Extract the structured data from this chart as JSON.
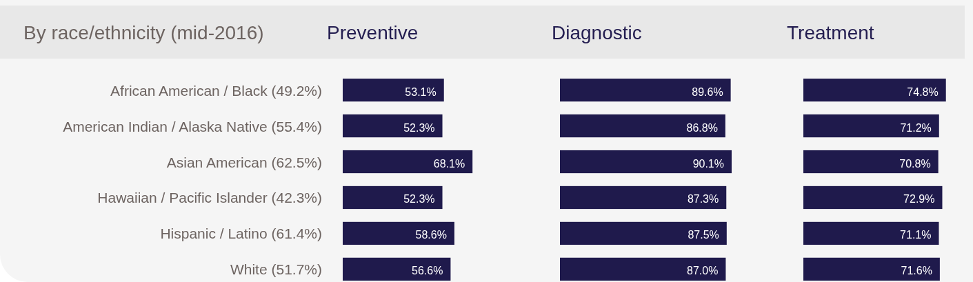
{
  "chart_data": [
    {
      "type": "bar",
      "orientation": "horizontal",
      "title": "Preventive",
      "ylabel": "By race/ethnicity (mid-2016)",
      "tick_labels": "y",
      "categories": [
        "African American / Black (49.2%)",
        "American Indian / Alaska Native (55.4%)",
        "Asian American (62.5%)",
        "Hawaiian / Pacific Islander (42.3%)",
        "Hispanic / Latino (61.4%)",
        "White (51.7%)"
      ],
      "values": [
        53.1,
        52.3,
        68.1,
        52.3,
        58.6,
        56.6
      ],
      "value_labels": [
        "53.1%",
        "52.3%",
        "68.1%",
        "52.3%",
        "58.6%",
        "56.6%"
      ],
      "color": "#1f1a4c"
    },
    {
      "type": "bar",
      "orientation": "horizontal",
      "title": "Diagnostic",
      "categories": [
        null,
        null,
        null,
        null,
        null,
        null
      ],
      "values": [
        89.6,
        86.8,
        90.1,
        87.3,
        87.5,
        87.0
      ],
      "value_labels": [
        "89.6%",
        "86.8%",
        "90.1%",
        "87.3%",
        "87.5%",
        "87.0%"
      ],
      "color": "#1f1a4c"
    },
    {
      "type": "bar",
      "orientation": "horizontal",
      "title": "Treatment",
      "categories": [
        null,
        null,
        null,
        null,
        null,
        null
      ],
      "values": [
        74.8,
        71.2,
        70.8,
        72.9,
        71.1,
        71.6
      ],
      "value_labels": [
        "74.8%",
        "71.2%",
        "70.8%",
        "72.9%",
        "71.1%",
        "71.6%"
      ],
      "color": "#1f1a4c"
    }
  ]
}
